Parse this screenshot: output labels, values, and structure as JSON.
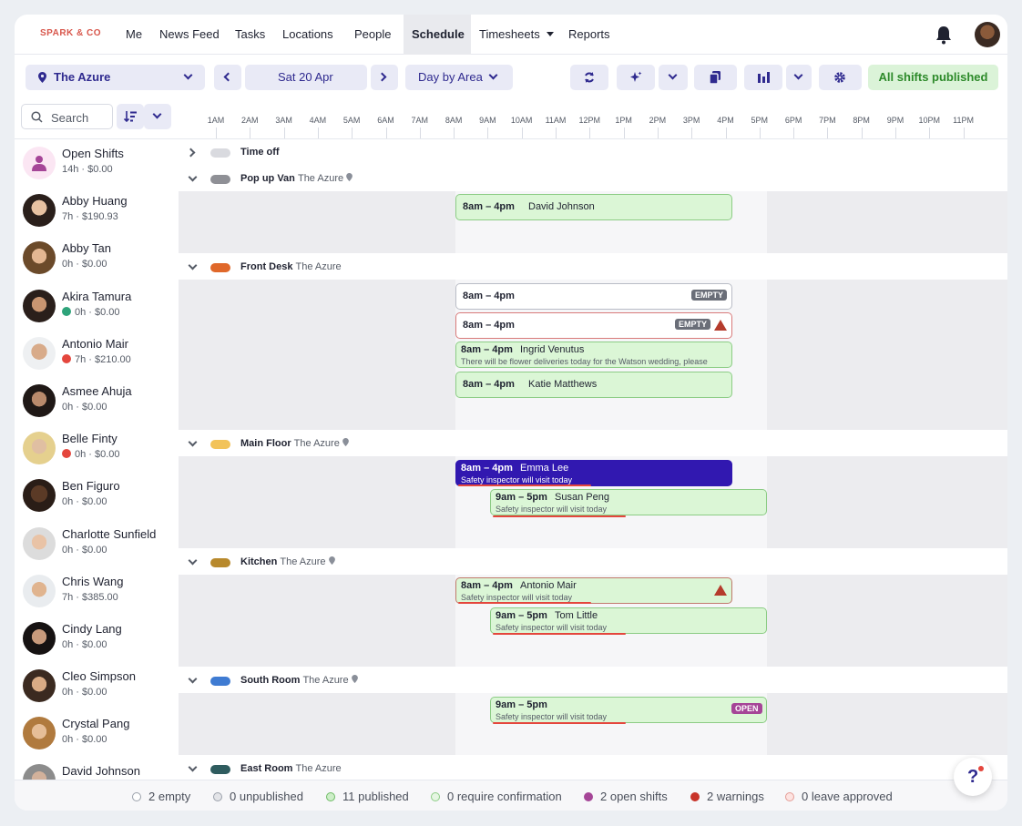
{
  "app": {
    "logo": "SPARK & CO"
  },
  "nav": {
    "items": [
      {
        "label": "Me"
      },
      {
        "label": "News Feed"
      },
      {
        "label": "Tasks"
      },
      {
        "label": "Locations"
      },
      {
        "label": "People"
      },
      {
        "label": "Schedule",
        "active": true
      },
      {
        "label": "Timesheets"
      },
      {
        "label": "Reports"
      }
    ]
  },
  "toolbar": {
    "location": "The Azure",
    "date": "Sat 20 Apr",
    "view": "Day by Area",
    "status": "All shifts published"
  },
  "search": {
    "placeholder": "Search"
  },
  "timeline": {
    "hours": [
      "1AM",
      "2AM",
      "3AM",
      "4AM",
      "5AM",
      "6AM",
      "7AM",
      "8AM",
      "9AM",
      "10AM",
      "11AM",
      "12PM",
      "1PM",
      "2PM",
      "3PM",
      "4PM",
      "5PM",
      "6PM",
      "7PM",
      "8PM",
      "9PM",
      "10PM",
      "11PM"
    ]
  },
  "people": [
    {
      "name": "Open Shifts",
      "stats": "14h · $0.00"
    },
    {
      "name": "Abby Huang",
      "stats": "7h · $190.93"
    },
    {
      "name": "Abby Tan",
      "stats": "0h · $0.00"
    },
    {
      "name": "Akira Tamura",
      "stats": "0h · $0.00",
      "status": "confirmed"
    },
    {
      "name": "Antonio Mair",
      "stats": "7h · $210.00",
      "status": "warning"
    },
    {
      "name": "Asmee Ahuja",
      "stats": "0h · $0.00"
    },
    {
      "name": "Belle Finty",
      "stats": "0h · $0.00",
      "status": "warning"
    },
    {
      "name": "Ben Figuro",
      "stats": "0h · $0.00"
    },
    {
      "name": "Charlotte Sunfield",
      "stats": "0h · $0.00"
    },
    {
      "name": "Chris Wang",
      "stats": "7h · $385.00"
    },
    {
      "name": "Cindy Lang",
      "stats": "0h · $0.00"
    },
    {
      "name": "Cleo Simpson",
      "stats": "0h · $0.00"
    },
    {
      "name": "Crystal Pang",
      "stats": "0h · $0.00"
    },
    {
      "name": "David Johnson",
      "stats": ""
    }
  ],
  "areas": {
    "time_off": {
      "name": "Time off",
      "color": "#d9dadf"
    },
    "popup": {
      "name": "Pop up Van",
      "location": "The Azure",
      "color": "#8f9096"
    },
    "front": {
      "name": "Front Desk",
      "location": "The Azure",
      "color": "#e0682a"
    },
    "main": {
      "name": "Main Floor",
      "location": "The Azure",
      "color": "#f2c35a"
    },
    "kitchen": {
      "name": "Kitchen",
      "location": "The Azure",
      "color": "#b8892c"
    },
    "south": {
      "name": "South Room",
      "location": "The Azure",
      "color": "#3f7bd2"
    },
    "east": {
      "name": "East Room",
      "location": "The Azure",
      "color": "#2f5c5f"
    }
  },
  "shifts": {
    "popup_1": {
      "time": "8am – 4pm",
      "who": "David Johnson"
    },
    "front_1": {
      "time": "8am – 4pm",
      "badge": "EMPTY"
    },
    "front_2": {
      "time": "8am – 4pm",
      "badge": "EMPTY"
    },
    "front_3": {
      "time": "8am – 4pm",
      "who": "Ingrid Venutus",
      "note": "There will be flower deliveries today for the Watson wedding, please"
    },
    "front_4": {
      "time": "8am – 4pm",
      "who": "Katie Matthews"
    },
    "main_1": {
      "time": "8am – 4pm",
      "who": "Emma Lee",
      "note": "Safety inspector will visit today"
    },
    "main_2": {
      "time": "9am – 5pm",
      "who": "Susan Peng",
      "note": "Safety inspector will visit today"
    },
    "kitchen_1": {
      "time": "8am – 4pm",
      "who": "Antonio Mair",
      "note": "Safety inspector will visit today"
    },
    "kitchen_2": {
      "time": "9am – 5pm",
      "who": "Tom Little",
      "note": "Safety inspector will visit today"
    },
    "south_1": {
      "time": "9am – 5pm",
      "badge": "OPEN",
      "note": "Safety inspector will visit today"
    }
  },
  "legend": [
    {
      "label": "2 empty",
      "color": "#ffffff"
    },
    {
      "label": "0 unpublished",
      "color": "#e3e4e8"
    },
    {
      "label": "11 published",
      "color": "#cdeec8"
    },
    {
      "label": "0 require confirmation",
      "color": "#e6f6e3"
    },
    {
      "label": "2 open shifts",
      "color": "#a54597"
    },
    {
      "label": "2 warnings",
      "color": "#c8342a"
    },
    {
      "label": "0 leave approved",
      "color": "#fde3e1"
    }
  ]
}
